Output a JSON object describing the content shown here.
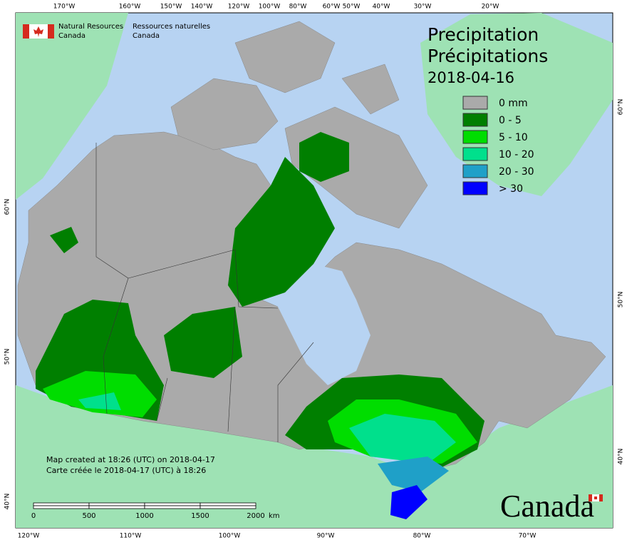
{
  "header": {
    "agency_en": [
      "Natural Resources",
      "Canada"
    ],
    "agency_fr": [
      "Ressources naturelles",
      "Canada"
    ]
  },
  "title": {
    "line1": "Precipitation",
    "line2": "Précipitations",
    "date": "2018-04-16"
  },
  "legend": [
    {
      "label": "0 mm",
      "color": "#aaaaaa"
    },
    {
      "label": "0 - 5",
      "color": "#007f00"
    },
    {
      "label": "5 - 10",
      "color": "#00dd00"
    },
    {
      "label": "10 - 20",
      "color": "#00e08c"
    },
    {
      "label": "20 - 30",
      "color": "#1fa0c8"
    },
    {
      "label": "> 30",
      "color": "#0000ff"
    }
  ],
  "graticule": {
    "top": [
      "170°W",
      "160°W",
      "150°W",
      "140°W",
      "120°W",
      "100°W",
      "80°W",
      "60°W",
      "50°W",
      "40°W",
      "30°W",
      "20°W"
    ],
    "bottom": [
      "120°W",
      "110°W",
      "100°W",
      "90°W",
      "80°W",
      "70°W"
    ],
    "left": [
      "60°N",
      "50°N",
      "40°N"
    ],
    "right": [
      "60°N",
      "50°N",
      "40°N"
    ]
  },
  "footer": {
    "created_en": "Map created at 18:26 (UTC) on 2018-04-17",
    "created_fr": "Carte créée le 2018-04-17 (UTC) à 18:26"
  },
  "scale_bar": {
    "labels": [
      "0",
      "500",
      "1000",
      "1500",
      "2000"
    ],
    "unit": "km"
  },
  "wordmark": "Canada"
}
